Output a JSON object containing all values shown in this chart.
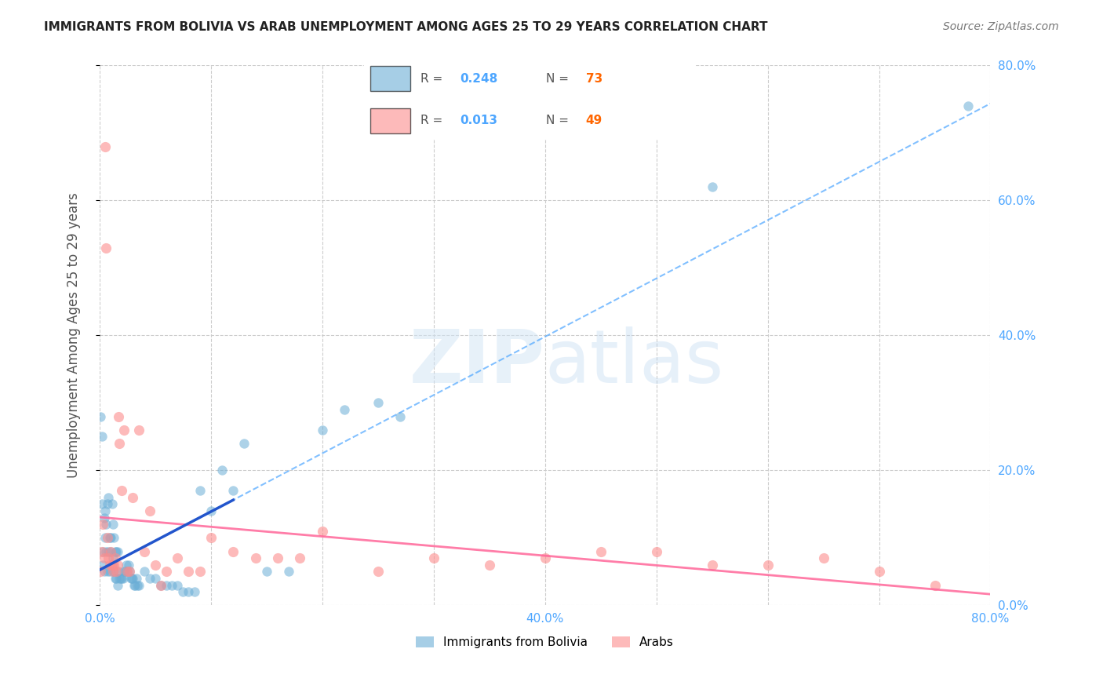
{
  "title": "IMMIGRANTS FROM BOLIVIA VS ARAB UNEMPLOYMENT AMONG AGES 25 TO 29 YEARS CORRELATION CHART",
  "source": "Source: ZipAtlas.com",
  "xlabel_color": "#4da6ff",
  "ylabel": "Unemployment Among Ages 25 to 29 years",
  "ylabel_color": "#555555",
  "xlim": [
    0.0,
    0.8
  ],
  "ylim": [
    0.0,
    0.8
  ],
  "xticks": [
    0.0,
    0.1,
    0.2,
    0.3,
    0.4,
    0.5,
    0.6,
    0.7,
    0.8
  ],
  "xtick_labels": [
    "0.0%",
    "",
    "",
    "",
    "40.0%",
    "",
    "",
    "",
    "80.0%"
  ],
  "ytick_labels_right": [
    "0.0%",
    "20.0%",
    "40.0%",
    "60.0%",
    "80.0%"
  ],
  "yticks_right": [
    0.0,
    0.2,
    0.4,
    0.6,
    0.8
  ],
  "bolivia_R": 0.248,
  "bolivia_N": 73,
  "arab_R": 0.013,
  "arab_N": 49,
  "bolivia_color": "#6baed6",
  "arab_color": "#fc8d8d",
  "bolivia_trend_color": "#4da6ff",
  "arab_trend_color": "#ff6699",
  "watermark": "ZIPatlas",
  "bolivia_x": [
    0.001,
    0.002,
    0.002,
    0.003,
    0.003,
    0.004,
    0.004,
    0.005,
    0.005,
    0.006,
    0.006,
    0.007,
    0.007,
    0.008,
    0.008,
    0.009,
    0.009,
    0.01,
    0.01,
    0.011,
    0.011,
    0.012,
    0.012,
    0.013,
    0.013,
    0.014,
    0.014,
    0.015,
    0.015,
    0.016,
    0.016,
    0.017,
    0.018,
    0.019,
    0.02,
    0.021,
    0.022,
    0.023,
    0.024,
    0.025,
    0.026,
    0.027,
    0.028,
    0.029,
    0.03,
    0.031,
    0.032,
    0.033,
    0.034,
    0.035,
    0.04,
    0.045,
    0.05,
    0.055,
    0.06,
    0.065,
    0.07,
    0.075,
    0.08,
    0.085,
    0.09,
    0.1,
    0.11,
    0.12,
    0.13,
    0.15,
    0.17,
    0.2,
    0.22,
    0.25,
    0.27,
    0.55,
    0.78
  ],
  "bolivia_y": [
    0.28,
    0.25,
    0.15,
    0.08,
    0.06,
    0.13,
    0.05,
    0.14,
    0.1,
    0.12,
    0.08,
    0.15,
    0.05,
    0.16,
    0.08,
    0.1,
    0.05,
    0.1,
    0.08,
    0.15,
    0.06,
    0.12,
    0.07,
    0.1,
    0.05,
    0.08,
    0.04,
    0.08,
    0.04,
    0.08,
    0.03,
    0.05,
    0.04,
    0.04,
    0.04,
    0.04,
    0.05,
    0.05,
    0.06,
    0.05,
    0.06,
    0.05,
    0.04,
    0.04,
    0.04,
    0.03,
    0.03,
    0.04,
    0.03,
    0.03,
    0.05,
    0.04,
    0.04,
    0.03,
    0.03,
    0.03,
    0.03,
    0.02,
    0.02,
    0.02,
    0.17,
    0.14,
    0.2,
    0.17,
    0.24,
    0.05,
    0.05,
    0.26,
    0.29,
    0.3,
    0.28,
    0.62,
    0.74
  ],
  "arab_x": [
    0.001,
    0.002,
    0.003,
    0.004,
    0.005,
    0.006,
    0.007,
    0.008,
    0.009,
    0.01,
    0.011,
    0.012,
    0.013,
    0.014,
    0.015,
    0.016,
    0.017,
    0.018,
    0.02,
    0.022,
    0.025,
    0.027,
    0.03,
    0.035,
    0.04,
    0.045,
    0.05,
    0.055,
    0.06,
    0.07,
    0.08,
    0.09,
    0.1,
    0.12,
    0.14,
    0.16,
    0.18,
    0.2,
    0.25,
    0.3,
    0.35,
    0.4,
    0.45,
    0.5,
    0.55,
    0.6,
    0.65,
    0.7,
    0.75
  ],
  "arab_y": [
    0.05,
    0.08,
    0.12,
    0.07,
    0.68,
    0.53,
    0.1,
    0.07,
    0.06,
    0.08,
    0.06,
    0.05,
    0.06,
    0.07,
    0.05,
    0.06,
    0.28,
    0.24,
    0.17,
    0.26,
    0.05,
    0.05,
    0.16,
    0.26,
    0.08,
    0.14,
    0.06,
    0.03,
    0.05,
    0.07,
    0.05,
    0.05,
    0.1,
    0.08,
    0.07,
    0.07,
    0.07,
    0.11,
    0.05,
    0.07,
    0.06,
    0.07,
    0.08,
    0.08,
    0.06,
    0.06,
    0.07,
    0.05,
    0.03
  ]
}
